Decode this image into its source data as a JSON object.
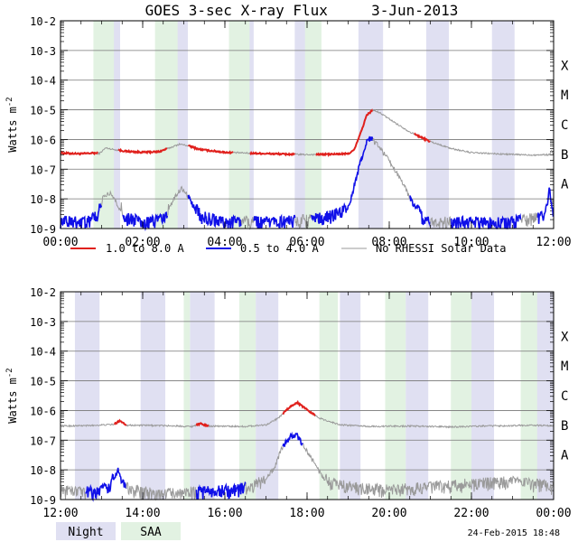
{
  "title": "GOES 3-sec X-ray Flux     3-Jun-2013",
  "ylabel": "Watts m",
  "ylabel_sup": "-2",
  "timestamp": "24-Feb-2015 18:48",
  "legend": {
    "long": "1.0 to 8.0 A",
    "short": "0.5 to 4.0 A",
    "gray": "No RHESSI Solar Data",
    "night": "Night",
    "saa": "SAA"
  },
  "colors": {
    "long": "#e0201c",
    "short": "#1010e8",
    "gray": "#9a9a9a",
    "night": "#e0e0f2",
    "saa": "#e2f2e2"
  },
  "flare_classes": [
    "X",
    "M",
    "C",
    "B",
    "A"
  ],
  "chart_data": [
    {
      "type": "line",
      "panel": "top",
      "title": "GOES 3-sec X-ray Flux     3-Jun-2013",
      "ylabel": "Watts m-2",
      "yscale": "log",
      "ylim": [
        1e-09,
        0.01
      ],
      "y_ticks": [
        "10-9",
        "10-8",
        "10-7",
        "10-6",
        "10-5",
        "10-4",
        "10-3",
        "10-2"
      ],
      "xlim_hours": [
        0,
        12
      ],
      "x_ticks": [
        "00:00",
        "02:00",
        "04:00",
        "06:00",
        "08:00",
        "10:00",
        "12:00"
      ],
      "night": [
        [
          1.0,
          1.45
        ],
        [
          2.55,
          3.1
        ],
        [
          4.15,
          4.7
        ],
        [
          5.7,
          6.25
        ],
        [
          7.25,
          7.85
        ],
        [
          8.9,
          9.45
        ],
        [
          10.5,
          11.05
        ]
      ],
      "saa": [
        [
          0.8,
          1.3
        ],
        [
          2.3,
          2.85
        ],
        [
          4.1,
          4.6
        ],
        [
          5.95,
          6.35
        ]
      ],
      "series": [
        {
          "name": "1.0 to 8.0 A",
          "key": "long",
          "points": [
            [
              0,
              3.5e-07
            ],
            [
              0.5,
              3.3e-07
            ],
            [
              0.8,
              3.5e-07
            ],
            [
              0.95,
              3.4e-07
            ],
            [
              1.1,
              5.2e-07
            ],
            [
              1.3,
              4.6e-07
            ],
            [
              1.6,
              4e-07
            ],
            [
              2.0,
              3.7e-07
            ],
            [
              2.4,
              3.9e-07
            ],
            [
              2.7,
              5.5e-07
            ],
            [
              2.9,
              7e-07
            ],
            [
              3.1,
              6.2e-07
            ],
            [
              3.4,
              4.6e-07
            ],
            [
              4.0,
              3.7e-07
            ],
            [
              4.8,
              3.4e-07
            ],
            [
              5.5,
              3.2e-07
            ],
            [
              6.0,
              3.1e-07
            ],
            [
              6.6,
              3.2e-07
            ],
            [
              7.0,
              3.3e-07
            ],
            [
              7.15,
              4.5e-07
            ],
            [
              7.3,
              1.6e-06
            ],
            [
              7.45,
              6.5e-06
            ],
            [
              7.6,
              1e-05
            ],
            [
              7.8,
              7.5e-06
            ],
            [
              8.1,
              4e-06
            ],
            [
              8.5,
              1.8e-06
            ],
            [
              9.0,
              8.5e-07
            ],
            [
              9.5,
              5e-07
            ],
            [
              10.0,
              3.6e-07
            ],
            [
              10.8,
              3.2e-07
            ],
            [
              11.5,
              3e-07
            ],
            [
              11.9,
              3.1e-07
            ],
            [
              11.95,
              4.2e-07
            ],
            [
              12.0,
              3e-07
            ]
          ],
          "gray_ranges": [
            [
              0.9,
              1.4
            ],
            [
              2.6,
              3.1
            ],
            [
              4.2,
              4.6
            ],
            [
              5.7,
              6.2
            ],
            [
              7.6,
              8.6
            ],
            [
              9.0,
              12.0
            ]
          ]
        },
        {
          "name": "0.5 to 4.0 A",
          "key": "short",
          "points": [
            [
              0.0,
              1.3e-09
            ],
            [
              0.5,
              1.2e-09
            ],
            [
              0.9,
              2e-09
            ],
            [
              1.05,
              1.4e-08
            ],
            [
              1.25,
              1.5e-08
            ],
            [
              1.4,
              6e-09
            ],
            [
              1.6,
              1.8e-09
            ],
            [
              2.0,
              1.2e-09
            ],
            [
              2.5,
              1.5e-09
            ],
            [
              2.75,
              1e-08
            ],
            [
              2.95,
              2.3e-08
            ],
            [
              3.15,
              1e-08
            ],
            [
              3.4,
              2e-09
            ],
            [
              4.0,
              1.2e-09
            ],
            [
              4.5,
              1.3e-09
            ],
            [
              5.0,
              1.2e-09
            ],
            [
              5.5,
              1.3e-09
            ],
            [
              6.5,
              1.8e-09
            ],
            [
              6.9,
              3e-09
            ],
            [
              7.05,
              8e-09
            ],
            [
              7.25,
              1e-07
            ],
            [
              7.45,
              8e-07
            ],
            [
              7.55,
              1.1e-06
            ],
            [
              7.7,
              7e-07
            ],
            [
              8.0,
              2e-07
            ],
            [
              8.3,
              4e-08
            ],
            [
              8.6,
              6e-09
            ],
            [
              8.85,
              1.3e-09
            ],
            [
              9.3,
              1.2e-09
            ],
            [
              10.0,
              1.2e-09
            ],
            [
              11.0,
              1.2e-09
            ],
            [
              11.8,
              2e-09
            ],
            [
              11.9,
              2.5e-08
            ],
            [
              12.0,
              1.3e-09
            ]
          ],
          "gray_ranges": [
            [
              1.0,
              1.5
            ],
            [
              2.6,
              3.1
            ],
            [
              4.4,
              4.7
            ],
            [
              5.7,
              6.1
            ],
            [
              7.6,
              8.5
            ],
            [
              9.0,
              9.5
            ],
            [
              11.2,
              11.6
            ]
          ]
        }
      ]
    },
    {
      "type": "line",
      "panel": "bottom",
      "ylabel": "Watts m-2",
      "yscale": "log",
      "ylim": [
        1e-09,
        0.01
      ],
      "y_ticks": [
        "10-9",
        "10-8",
        "10-7",
        "10-6",
        "10-5",
        "10-4",
        "10-3",
        "10-2"
      ],
      "xlim_hours": [
        12,
        24
      ],
      "x_ticks": [
        "12:00",
        "14:00",
        "16:00",
        "18:00",
        "20:00",
        "22:00",
        "00:00"
      ],
      "night": [
        [
          12.35,
          12.95
        ],
        [
          13.95,
          14.55
        ],
        [
          15.15,
          15.75
        ],
        [
          16.75,
          17.3
        ],
        [
          18.8,
          19.3
        ],
        [
          20.4,
          20.95
        ],
        [
          22.0,
          22.55
        ],
        [
          23.55,
          24.0
        ]
      ],
      "saa": [
        [
          15.0,
          15.15
        ],
        [
          16.35,
          16.75
        ],
        [
          18.3,
          18.75
        ],
        [
          19.9,
          20.4
        ],
        [
          21.5,
          22.0
        ],
        [
          23.2,
          23.6
        ]
      ],
      "series": [
        {
          "name": "1.0 to 8.0 A",
          "key": "long",
          "points": [
            [
              12.0,
              3e-07
            ],
            [
              12.7,
              3.1e-07
            ],
            [
              13.3,
              3.4e-07
            ],
            [
              13.45,
              4.6e-07
            ],
            [
              13.6,
              3.2e-07
            ],
            [
              14.5,
              3.1e-07
            ],
            [
              15.2,
              2.9e-07
            ],
            [
              15.4,
              3.6e-07
            ],
            [
              15.6,
              3e-07
            ],
            [
              16.5,
              2.9e-07
            ],
            [
              17.0,
              3.3e-07
            ],
            [
              17.3,
              5.5e-07
            ],
            [
              17.55,
              1.2e-06
            ],
            [
              17.75,
              1.9e-06
            ],
            [
              17.95,
              1.2e-06
            ],
            [
              18.3,
              5.5e-07
            ],
            [
              18.8,
              3.3e-07
            ],
            [
              19.5,
              2.9e-07
            ],
            [
              20.5,
              3e-07
            ],
            [
              21.5,
              2.8e-07
            ],
            [
              22.3,
              3e-07
            ],
            [
              23.0,
              3.1e-07
            ],
            [
              23.5,
              3.2e-07
            ],
            [
              24.0,
              3e-07
            ]
          ],
          "gray_ranges": [
            [
              12.0,
              13.3
            ],
            [
              13.6,
              15.3
            ],
            [
              15.6,
              17.4
            ],
            [
              18.2,
              24.0
            ]
          ]
        },
        {
          "name": "0.5 to 4.0 A",
          "key": "short",
          "points": [
            [
              12.0,
              1.5e-09
            ],
            [
              12.8,
              1.3e-09
            ],
            [
              13.2,
              2e-09
            ],
            [
              13.4,
              1.1e-08
            ],
            [
              13.55,
              2e-09
            ],
            [
              14.0,
              1.3e-09
            ],
            [
              15.0,
              1.2e-09
            ],
            [
              16.0,
              1.5e-09
            ],
            [
              16.5,
              1.8e-09
            ],
            [
              16.9,
              3e-09
            ],
            [
              17.2,
              1.2e-08
            ],
            [
              17.4,
              6e-08
            ],
            [
              17.6,
              1.3e-07
            ],
            [
              17.75,
              1.5e-07
            ],
            [
              17.9,
              7e-08
            ],
            [
              18.2,
              1.5e-08
            ],
            [
              18.5,
              3e-09
            ],
            [
              19.0,
              2e-09
            ],
            [
              20.0,
              1.5e-09
            ],
            [
              21.0,
              2e-09
            ],
            [
              22.0,
              2.5e-09
            ],
            [
              23.0,
              3e-09
            ],
            [
              24.0,
              2e-09
            ]
          ],
          "gray_ranges": [
            [
              12.0,
              12.6
            ],
            [
              13.6,
              15.3
            ],
            [
              16.5,
              17.4
            ],
            [
              17.9,
              24.0
            ]
          ]
        }
      ]
    }
  ]
}
